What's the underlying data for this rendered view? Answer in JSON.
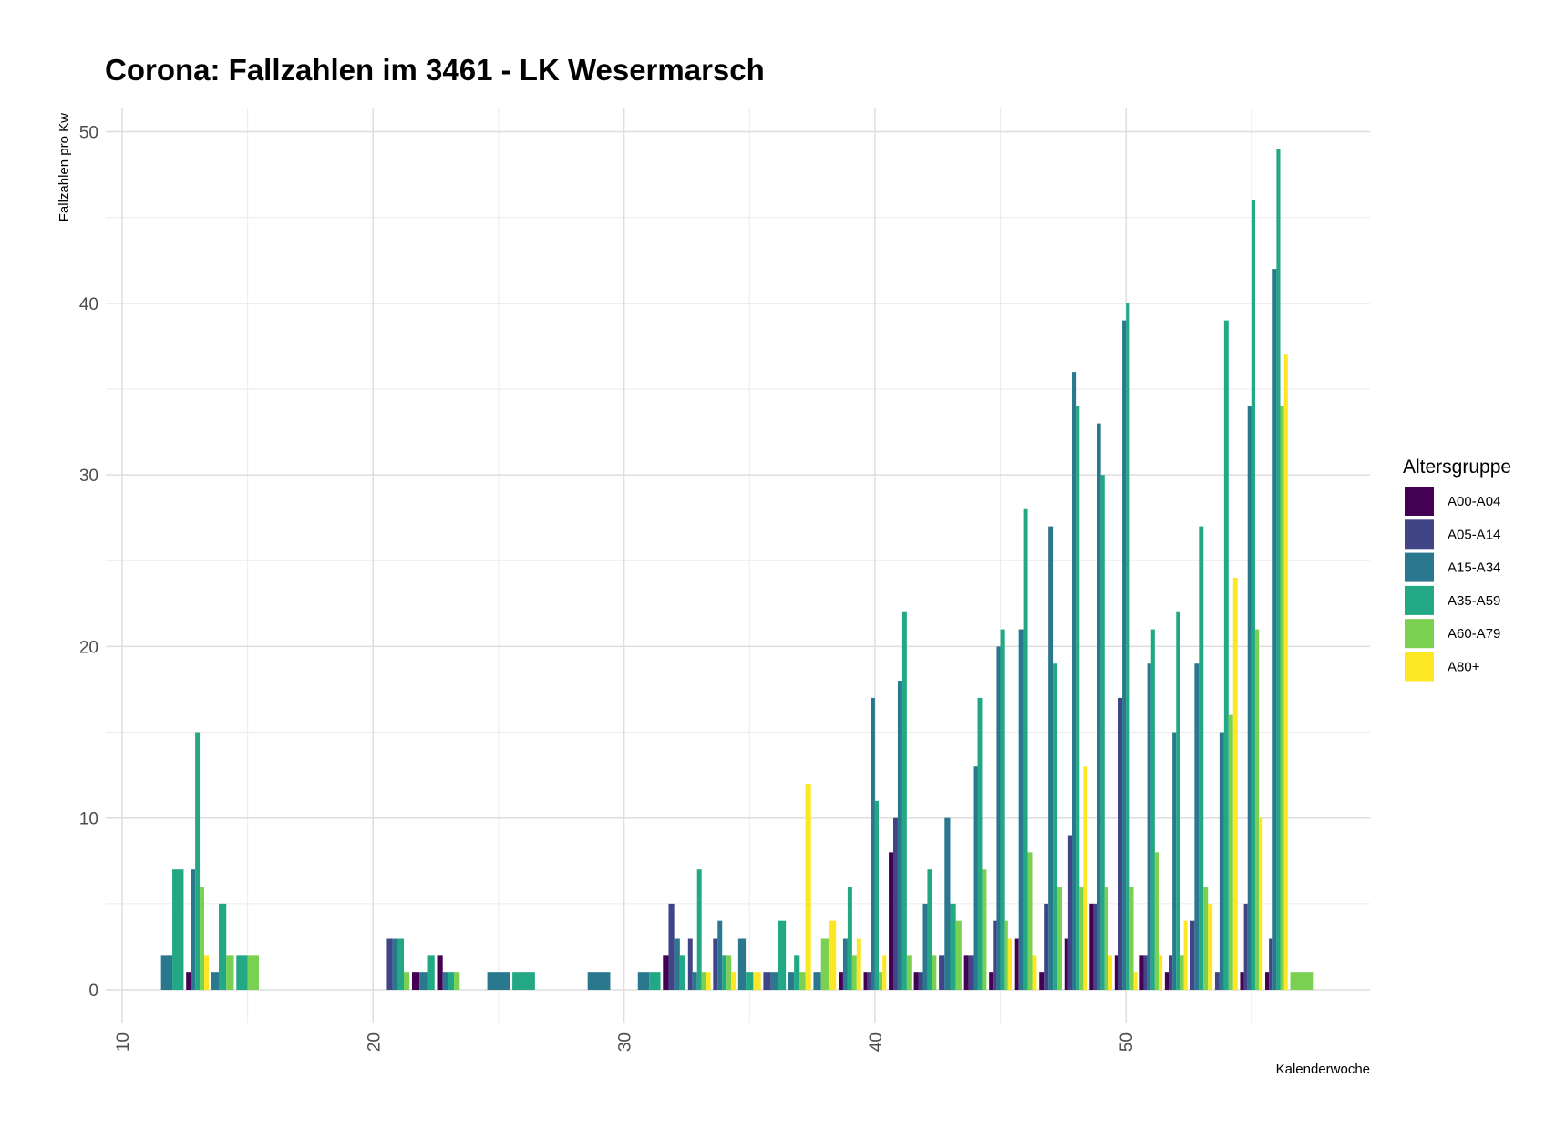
{
  "chart_data": {
    "type": "bar",
    "title": "Corona: Fallzahlen im 3461 - LK Wesermarsch",
    "xlabel": "Kalenderwoche",
    "ylabel": "Fallzahlen pro Kw",
    "xlim": [
      9.3,
      59.7
    ],
    "ylim": [
      0,
      52
    ],
    "x_ticks": [
      10,
      20,
      30,
      40,
      50
    ],
    "y_ticks": [
      0,
      10,
      20,
      30,
      40,
      50
    ],
    "grid": true,
    "legend": {
      "title": "Altersgruppe",
      "placement": "right"
    },
    "series": [
      {
        "name": "A00-A04",
        "color": "#440154"
      },
      {
        "name": "A05-A14",
        "color": "#414487"
      },
      {
        "name": "A15-A34",
        "color": "#2A788E"
      },
      {
        "name": "A35-A59",
        "color": "#22A884"
      },
      {
        "name": "A60-A79",
        "color": "#7AD151"
      },
      {
        "name": "A80+",
        "color": "#FDE725"
      }
    ],
    "data": [
      {
        "week": 12,
        "values": {
          "A15-A34": 2,
          "A35-A59": 7
        }
      },
      {
        "week": 13,
        "values": {
          "A00-A04": 1,
          "A15-A34": 7,
          "A35-A59": 15,
          "A60-A79": 6,
          "A80+": 2
        }
      },
      {
        "week": 14,
        "values": {
          "A15-A34": 1,
          "A35-A59": 5,
          "A60-A79": 2
        }
      },
      {
        "week": 15,
        "values": {
          "A35-A59": 2,
          "A60-A79": 2
        }
      },
      {
        "week": 21,
        "values": {
          "A05-A14": 3,
          "A15-A34": 3,
          "A35-A59": 3,
          "A60-A79": 1
        }
      },
      {
        "week": 22,
        "values": {
          "A00-A04": 1,
          "A15-A34": 1,
          "A35-A59": 2
        }
      },
      {
        "week": 23,
        "values": {
          "A00-A04": 2,
          "A15-A34": 1,
          "A35-A59": 1,
          "A60-A79": 1
        }
      },
      {
        "week": 25,
        "values": {
          "A15-A34": 1
        }
      },
      {
        "week": 26,
        "values": {
          "A35-A59": 1
        }
      },
      {
        "week": 29,
        "values": {
          "A15-A34": 1
        }
      },
      {
        "week": 31,
        "values": {
          "A15-A34": 1,
          "A35-A59": 1
        }
      },
      {
        "week": 32,
        "values": {
          "A00-A04": 2,
          "A05-A14": 5,
          "A15-A34": 3,
          "A35-A59": 2
        }
      },
      {
        "week": 33,
        "values": {
          "A05-A14": 3,
          "A15-A34": 1,
          "A35-A59": 7,
          "A60-A79": 1,
          "A80+": 1
        }
      },
      {
        "week": 34,
        "values": {
          "A05-A14": 3,
          "A15-A34": 4,
          "A35-A59": 2,
          "A60-A79": 2,
          "A80+": 1
        }
      },
      {
        "week": 35,
        "values": {
          "A15-A34": 3,
          "A35-A59": 1,
          "A80+": 1
        }
      },
      {
        "week": 36,
        "values": {
          "A05-A14": 1,
          "A15-A34": 1,
          "A35-A59": 4
        }
      },
      {
        "week": 37,
        "values": {
          "A15-A34": 1,
          "A35-A59": 2,
          "A60-A79": 1,
          "A80+": 12
        }
      },
      {
        "week": 38,
        "values": {
          "A15-A34": 1,
          "A60-A79": 3,
          "A80+": 4
        }
      },
      {
        "week": 39,
        "values": {
          "A00-A04": 1,
          "A15-A34": 3,
          "A35-A59": 6,
          "A60-A79": 2,
          "A80+": 3
        }
      },
      {
        "week": 40,
        "values": {
          "A00-A04": 1,
          "A05-A14": 1,
          "A15-A34": 17,
          "A35-A59": 11,
          "A60-A79": 1,
          "A80+": 2
        }
      },
      {
        "week": 41,
        "values": {
          "A00-A04": 8,
          "A05-A14": 10,
          "A15-A34": 18,
          "A35-A59": 22,
          "A60-A79": 2
        }
      },
      {
        "week": 42,
        "values": {
          "A00-A04": 1,
          "A05-A14": 1,
          "A15-A34": 5,
          "A35-A59": 7,
          "A60-A79": 2
        }
      },
      {
        "week": 43,
        "values": {
          "A05-A14": 2,
          "A15-A34": 10,
          "A35-A59": 5,
          "A60-A79": 4
        }
      },
      {
        "week": 44,
        "values": {
          "A00-A04": 2,
          "A05-A14": 2,
          "A15-A34": 13,
          "A35-A59": 17,
          "A60-A79": 7
        }
      },
      {
        "week": 45,
        "values": {
          "A00-A04": 1,
          "A05-A14": 4,
          "A15-A34": 20,
          "A35-A59": 21,
          "A60-A79": 4,
          "A80+": 3
        }
      },
      {
        "week": 46,
        "values": {
          "A00-A04": 3,
          "A15-A34": 21,
          "A35-A59": 28,
          "A60-A79": 8,
          "A80+": 2
        }
      },
      {
        "week": 47,
        "values": {
          "A00-A04": 1,
          "A05-A14": 5,
          "A15-A34": 27,
          "A35-A59": 19,
          "A60-A79": 6
        }
      },
      {
        "week": 48,
        "values": {
          "A00-A04": 3,
          "A05-A14": 9,
          "A15-A34": 36,
          "A35-A59": 34,
          "A60-A79": 6,
          "A80+": 13
        }
      },
      {
        "week": 49,
        "values": {
          "A00-A04": 5,
          "A05-A14": 5,
          "A15-A34": 33,
          "A35-A59": 30,
          "A60-A79": 6,
          "A80+": 2
        }
      },
      {
        "week": 50,
        "values": {
          "A00-A04": 2,
          "A05-A14": 17,
          "A15-A34": 39,
          "A35-A59": 40,
          "A60-A79": 6,
          "A80+": 1
        }
      },
      {
        "week": 51,
        "values": {
          "A00-A04": 2,
          "A05-A14": 2,
          "A15-A34": 19,
          "A35-A59": 21,
          "A60-A79": 8,
          "A80+": 2
        }
      },
      {
        "week": 52,
        "values": {
          "A00-A04": 1,
          "A05-A14": 2,
          "A15-A34": 15,
          "A35-A59": 22,
          "A60-A79": 2,
          "A80+": 4
        }
      },
      {
        "week": 53,
        "values": {
          "A05-A14": 4,
          "A15-A34": 19,
          "A35-A59": 27,
          "A60-A79": 6,
          "A80+": 5
        }
      },
      {
        "week": 54,
        "values": {
          "A05-A14": 1,
          "A15-A34": 15,
          "A35-A59": 39,
          "A60-A79": 16,
          "A80+": 24
        }
      },
      {
        "week": 55,
        "values": {
          "A00-A04": 1,
          "A05-A14": 5,
          "A15-A34": 34,
          "A35-A59": 46,
          "A60-A79": 21,
          "A80+": 10
        }
      },
      {
        "week": 56,
        "values": {
          "A00-A04": 1,
          "A05-A14": 3,
          "A15-A34": 42,
          "A35-A59": 49,
          "A60-A79": 34,
          "A80+": 37
        }
      },
      {
        "week": 57,
        "values": {
          "A60-A79": 1
        }
      }
    ]
  }
}
